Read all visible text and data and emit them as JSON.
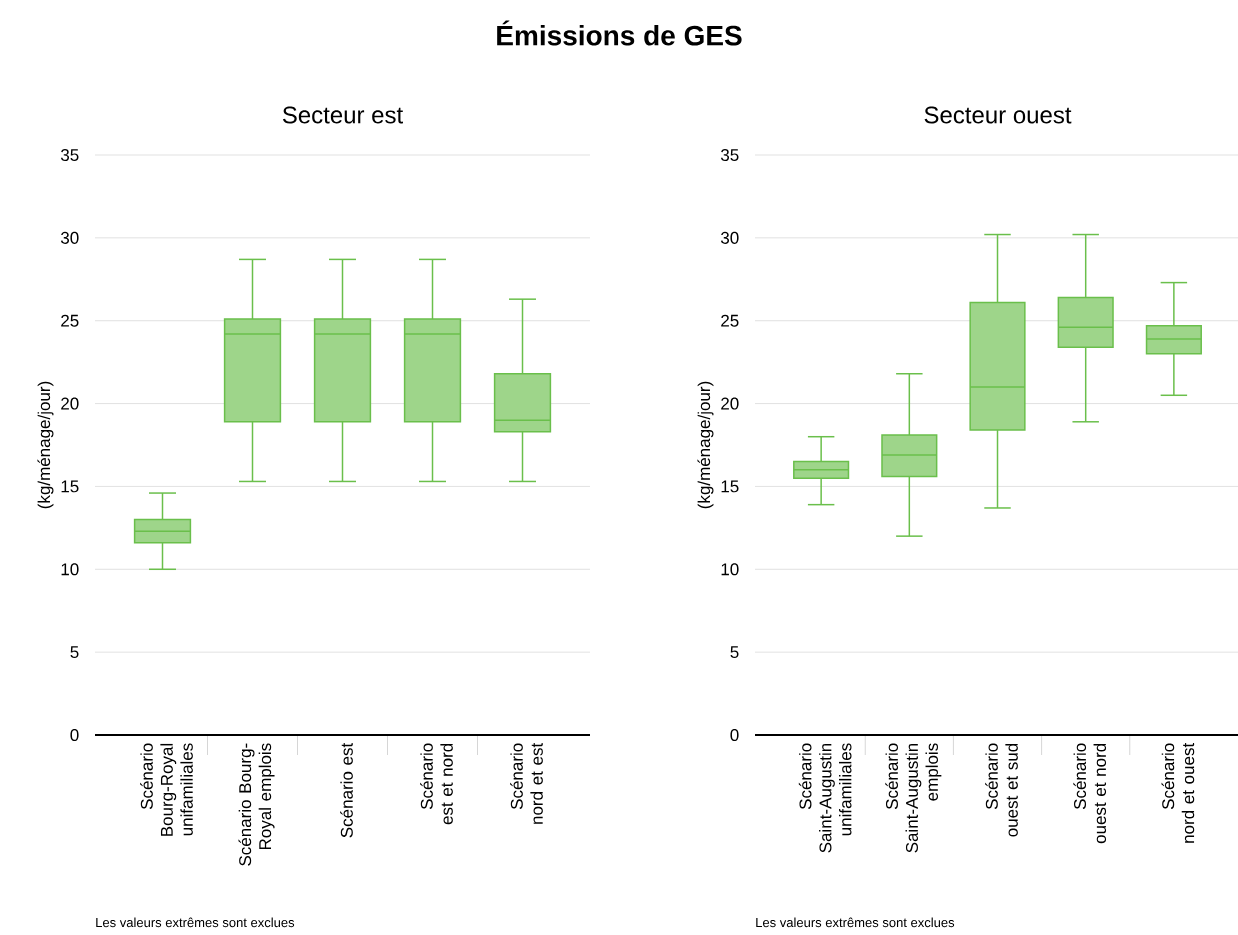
{
  "chart_data": [
    {
      "type": "box",
      "title": "Secteur est",
      "ylabel": "(kg/ménage/jour)",
      "categories": [
        "Scénario Bourg-Royal unifamiliales",
        "Scénario Bourg-Royal emplois",
        "Scénario est",
        "Scénario est et nord",
        "Scénario nord et est"
      ],
      "boxes": [
        {
          "low": 10.0,
          "q1": 11.6,
          "median": 12.3,
          "q3": 13.0,
          "high": 14.6
        },
        {
          "low": 15.3,
          "q1": 18.9,
          "median": 24.2,
          "q3": 25.1,
          "high": 28.7
        },
        {
          "low": 15.3,
          "q1": 18.9,
          "median": 24.2,
          "q3": 25.1,
          "high": 28.7
        },
        {
          "low": 15.3,
          "q1": 18.9,
          "median": 24.2,
          "q3": 25.1,
          "high": 28.7
        },
        {
          "low": 15.3,
          "q1": 18.3,
          "median": 19.0,
          "q3": 21.8,
          "high": 26.3
        }
      ],
      "color": "#6abf4b",
      "ylim": [
        0,
        35
      ],
      "yticks": [
        0,
        5,
        10,
        15,
        20,
        25,
        30,
        35
      ],
      "grid": "y",
      "annotations": [
        "Émissions de GES",
        "Les valeurs extrêmes sont exclues"
      ]
    },
    {
      "type": "box",
      "title": "Secteur ouest",
      "ylabel": "(kg/ménage/jour)",
      "categories": [
        "Scénario Saint-Augustin unifamiliales",
        "Scénario Saint-Augustin emplois",
        "Scénario ouest et sud",
        "Scénario ouest et nord",
        "Scénario nord et ouest"
      ],
      "boxes": [
        {
          "low": 13.9,
          "q1": 15.5,
          "median": 16.0,
          "q3": 16.5,
          "high": 18.0
        },
        {
          "low": 12.0,
          "q1": 15.6,
          "median": 16.9,
          "q3": 18.1,
          "high": 21.8
        },
        {
          "low": 13.7,
          "q1": 18.4,
          "median": 21.0,
          "q3": 26.1,
          "high": 30.2
        },
        {
          "low": 18.9,
          "q1": 23.4,
          "median": 24.6,
          "q3": 26.4,
          "high": 30.2
        },
        {
          "low": 20.5,
          "q1": 23.0,
          "median": 23.9,
          "q3": 24.7,
          "high": 27.3
        }
      ],
      "color": "#6abf4b",
      "ylim": [
        0,
        35
      ],
      "yticks": [
        0,
        5,
        10,
        15,
        20,
        25,
        30,
        35
      ],
      "grid": "y",
      "annotations": [
        "Les valeurs extrêmes sont exclues"
      ]
    }
  ]
}
